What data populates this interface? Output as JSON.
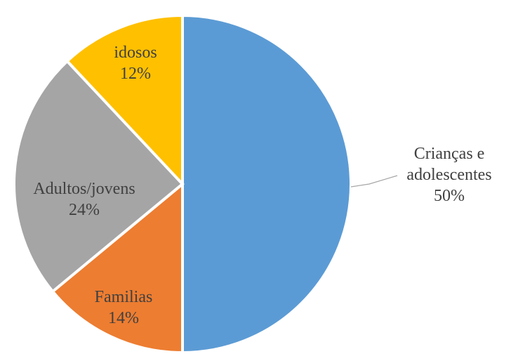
{
  "chart_data": {
    "type": "pie",
    "slices": [
      {
        "label_lines": [
          "Crianças  e",
          "adolescentes"
        ],
        "value": 50,
        "value_label": "50%",
        "color": "#5b9bd5"
      },
      {
        "label_lines": [
          "Familias"
        ],
        "value": 14,
        "value_label": "14%",
        "color": "#ed7d31"
      },
      {
        "label_lines": [
          "Adultos/jovens"
        ],
        "value": 24,
        "value_label": "24%",
        "color": "#a5a5a5"
      },
      {
        "label_lines": [
          "idosos"
        ],
        "value": 12,
        "value_label": "12%",
        "color": "#ffc000"
      }
    ],
    "start_angle": "12 o'clock",
    "direction": "clockwise",
    "legend": "none"
  }
}
